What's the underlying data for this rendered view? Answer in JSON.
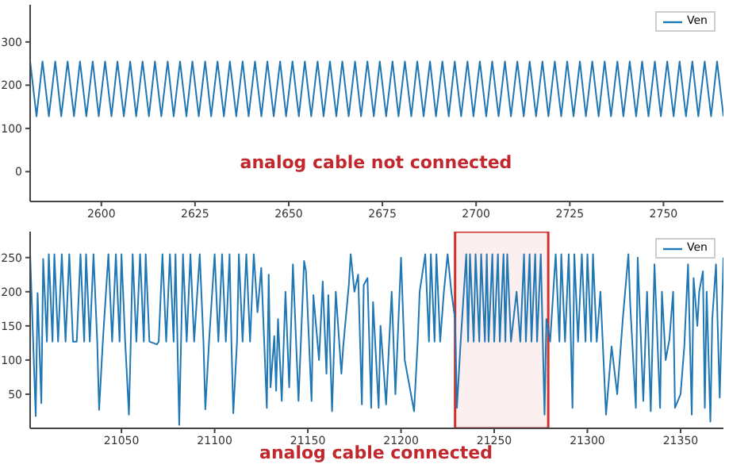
{
  "chart_data": [
    {
      "type": "line",
      "annotations": [
        "analog cable not connected"
      ],
      "legend": "top right",
      "grid": false,
      "marker": "none",
      "line_style": "solid",
      "xlim": [
        2581,
        2766
      ],
      "xticks": [
        2600,
        2625,
        2650,
        2675,
        2700,
        2725,
        2750
      ],
      "ylim": [
        -69,
        386
      ],
      "yticks": [
        0,
        100,
        200,
        300
      ],
      "x": [
        2581,
        2582.7,
        2584.3,
        2586,
        2587.7,
        2589.3,
        2591,
        2592.7,
        2594.3,
        2596,
        2597.7,
        2599.3,
        2601,
        2602.7,
        2604.3,
        2606,
        2607.7,
        2609.3,
        2611,
        2612.7,
        2614.3,
        2616,
        2617.7,
        2619.3,
        2621,
        2622.7,
        2624.3,
        2626,
        2627.7,
        2629.3,
        2631,
        2632.7,
        2634.3,
        2636,
        2637.7,
        2639.3,
        2641,
        2642.7,
        2644.3,
        2646,
        2647.7,
        2649.3,
        2651,
        2652.7,
        2654.3,
        2656,
        2657.7,
        2659.3,
        2661,
        2662.7,
        2664.3,
        2666,
        2667.7,
        2669.3,
        2671,
        2672.7,
        2674.3,
        2676,
        2677.7,
        2679.3,
        2681,
        2682.7,
        2684.3,
        2686,
        2687.7,
        2689.3,
        2691,
        2692.7,
        2694.3,
        2696,
        2697.7,
        2699.3,
        2701,
        2702.7,
        2704.3,
        2706,
        2707.7,
        2709.3,
        2711,
        2712.7,
        2714.3,
        2716,
        2717.7,
        2719.3,
        2721,
        2722.7,
        2724.3,
        2726,
        2727.7,
        2729.3,
        2731,
        2732.7,
        2734.3,
        2736,
        2737.7,
        2739.3,
        2741,
        2742.7,
        2744.3,
        2746,
        2747.7,
        2749.3,
        2751,
        2752.7,
        2754.3,
        2756,
        2757.7,
        2759.3,
        2761,
        2762.7,
        2764.3,
        2766
      ],
      "series": [
        {
          "name": "Ven",
          "color": "#1f77b4",
          "values": [
            255,
            128,
            255,
            128,
            255,
            128,
            255,
            128,
            255,
            128,
            255,
            128,
            255,
            128,
            255,
            128,
            255,
            128,
            255,
            128,
            255,
            128,
            255,
            128,
            255,
            128,
            255,
            128,
            255,
            128,
            255,
            128,
            255,
            128,
            255,
            128,
            255,
            128,
            255,
            128,
            255,
            128,
            255,
            128,
            255,
            128,
            255,
            128,
            255,
            128,
            255,
            128,
            255,
            128,
            255,
            128,
            255,
            128,
            255,
            128,
            255,
            128,
            255,
            128,
            255,
            128,
            255,
            128,
            255,
            128,
            255,
            128,
            255,
            128,
            255,
            128,
            255,
            128,
            255,
            128,
            255,
            128,
            255,
            128,
            255,
            128,
            255,
            128,
            255,
            128,
            255,
            128,
            255,
            128,
            255,
            128,
            255,
            128,
            255,
            128,
            255,
            128,
            255,
            128,
            255,
            128,
            255,
            128,
            255,
            128,
            255,
            128
          ]
        }
      ]
    },
    {
      "type": "line",
      "annotations": [
        "analog cable connected"
      ],
      "legend": "top right",
      "grid": false,
      "marker": "none",
      "line_style": "solid",
      "xlim": [
        21001,
        21373
      ],
      "xticks": [
        21050,
        21100,
        21150,
        21200,
        21250,
        21300,
        21350
      ],
      "ylim": [
        0,
        288
      ],
      "yticks": [
        50,
        100,
        150,
        200,
        250
      ],
      "bands": [
        {
          "axis": "x",
          "from": 21229,
          "to": 21279,
          "color": "#d0312d"
        }
      ],
      "x": [
        21001,
        21004,
        21005,
        21007,
        21008,
        21010,
        21011,
        21013,
        21014,
        21016,
        21018,
        21020,
        21022,
        21024,
        21026,
        21028,
        21030,
        21031,
        21033,
        21035,
        21037,
        21038,
        21040,
        21043,
        21045,
        21047,
        21049,
        21050,
        21052,
        21054,
        21055,
        21056,
        21058,
        21060,
        21062,
        21063,
        21065,
        21069,
        21070,
        21072,
        21074,
        21076,
        21078,
        21079,
        21081,
        21083,
        21085,
        21087,
        21089,
        21092,
        21094,
        21095,
        21097,
        21100,
        21102,
        21104,
        21106,
        21108,
        21109,
        21110,
        21112,
        21113,
        21115,
        21117,
        21119,
        21121,
        21123,
        21125,
        21128,
        21129,
        21130,
        21132,
        21133,
        21134,
        21136,
        21138,
        21140,
        21142,
        21145,
        21148,
        21149,
        21152,
        21153,
        21156,
        21158,
        21160,
        21161,
        21163,
        21165,
        21168,
        21169,
        21172,
        21173,
        21175,
        21177,
        21179,
        21180,
        21182,
        21184,
        21185,
        21188,
        21189,
        21192,
        21195,
        21197,
        21200,
        21202,
        21205,
        21207,
        21209,
        21210,
        21213,
        21215,
        21216,
        21218,
        21219,
        21221,
        21223,
        21225,
        21227,
        21229,
        21230,
        21232,
        21235,
        21236,
        21237,
        21239,
        21240,
        21242,
        21243,
        21245,
        21246,
        21247,
        21249,
        21250,
        21252,
        21253,
        21255,
        21256,
        21257,
        21259,
        21262,
        21264,
        21266,
        21267,
        21269,
        21270,
        21272,
        21273,
        21275,
        21277,
        21278,
        21280,
        21283,
        21285,
        21286,
        21288,
        21290,
        21292,
        21293,
        21295,
        21297,
        21299,
        21300,
        21302,
        21303,
        21305,
        21307,
        21310,
        21313,
        21316,
        21319,
        21322,
        21323,
        21326,
        21327,
        21330,
        21332,
        21334,
        21336,
        21339,
        21340,
        21342,
        21344,
        21346,
        21347,
        21350,
        21352,
        21354,
        21356,
        21357,
        21359,
        21360,
        21362,
        21363,
        21364,
        21366,
        21367,
        21369,
        21371,
        21373
      ],
      "series": [
        {
          "name": "Ven",
          "color": "#1f77b4",
          "values": [
            255,
            18,
            198,
            37,
            248,
            127,
            255,
            127,
            255,
            127,
            255,
            127,
            255,
            127,
            127,
            255,
            127,
            255,
            127,
            255,
            127,
            27,
            127,
            255,
            127,
            255,
            127,
            255,
            127,
            20,
            127,
            255,
            127,
            255,
            127,
            255,
            127,
            123,
            127,
            255,
            127,
            255,
            127,
            255,
            5,
            255,
            127,
            255,
            127,
            255,
            127,
            28,
            127,
            255,
            127,
            255,
            127,
            255,
            127,
            22,
            127,
            255,
            127,
            255,
            127,
            255,
            170,
            235,
            30,
            225,
            60,
            135,
            55,
            160,
            40,
            200,
            60,
            240,
            40,
            245,
            230,
            40,
            195,
            100,
            215,
            80,
            195,
            25,
            200,
            80,
            120,
            210,
            255,
            200,
            225,
            35,
            210,
            220,
            30,
            185,
            30,
            150,
            35,
            200,
            50,
            250,
            100,
            55,
            25,
            130,
            200,
            255,
            127,
            255,
            127,
            255,
            127,
            200,
            255,
            200,
            160,
            30,
            127,
            255,
            127,
            255,
            127,
            255,
            127,
            255,
            127,
            255,
            127,
            255,
            127,
            255,
            127,
            255,
            127,
            255,
            127,
            200,
            127,
            255,
            127,
            255,
            127,
            255,
            127,
            255,
            20,
            160,
            127,
            255,
            127,
            255,
            127,
            255,
            30,
            255,
            127,
            255,
            127,
            255,
            127,
            255,
            127,
            200,
            20,
            120,
            50,
            160,
            255,
            180,
            30,
            250,
            40,
            200,
            25,
            240,
            30,
            200,
            100,
            130,
            200,
            30,
            50,
            120,
            240,
            20,
            220,
            150,
            200,
            230,
            30,
            200,
            10,
            160,
            240,
            45,
            250
          ]
        }
      ]
    }
  ]
}
